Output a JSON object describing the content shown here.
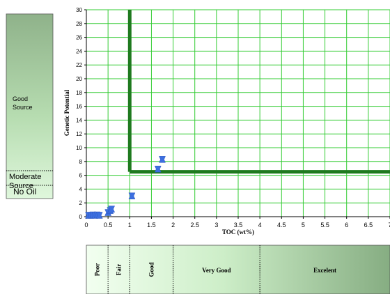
{
  "chart_data": {
    "type": "scatter",
    "xlabel": "TOC (wt%)",
    "ylabel": "Genetic Potential",
    "xlim": [
      0,
      7
    ],
    "ylim": [
      0,
      30
    ],
    "x_ticks": [
      "0",
      "0.5",
      "1",
      "1.5",
      "2",
      "2.5",
      "3",
      "3.5",
      "4",
      "4.5",
      "5",
      "5.5",
      "6",
      "6.5",
      "7"
    ],
    "y_ticks": [
      "0",
      "2",
      "4",
      "6",
      "8",
      "10",
      "12",
      "14",
      "16",
      "18",
      "20",
      "22",
      "24",
      "26",
      "28",
      "30"
    ],
    "grid": true,
    "colors": {
      "grid": "#33cc33",
      "threshold": "#1f7a1f",
      "points": "#3d6fe0"
    },
    "threshold_lines": [
      {
        "orientation": "vertical",
        "x": 1.0,
        "y_from": 6.5,
        "y_to": 30
      },
      {
        "orientation": "horizontal",
        "y": 6.5,
        "x_from": 1.0,
        "x_to": 7
      }
    ],
    "points": [
      {
        "x": 0.05,
        "y": 0.2
      },
      {
        "x": 0.1,
        "y": 0.2
      },
      {
        "x": 0.15,
        "y": 0.25
      },
      {
        "x": 0.2,
        "y": 0.2
      },
      {
        "x": 0.25,
        "y": 0.25
      },
      {
        "x": 0.3,
        "y": 0.2
      },
      {
        "x": 0.5,
        "y": 0.6
      },
      {
        "x": 0.55,
        "y": 0.9
      },
      {
        "x": 0.58,
        "y": 1.1
      },
      {
        "x": 1.05,
        "y": 3.0
      },
      {
        "x": 1.65,
        "y": 6.9
      },
      {
        "x": 1.75,
        "y": 8.3
      }
    ]
  },
  "side_scale": {
    "bands": [
      {
        "label": "Good Source"
      },
      {
        "label": "Moderate Source"
      },
      {
        "label": "No Oil"
      }
    ]
  },
  "bottom_scale": {
    "categories": [
      "Poor",
      "Fair",
      "Good",
      "Very Good",
      "Excelent"
    ]
  }
}
